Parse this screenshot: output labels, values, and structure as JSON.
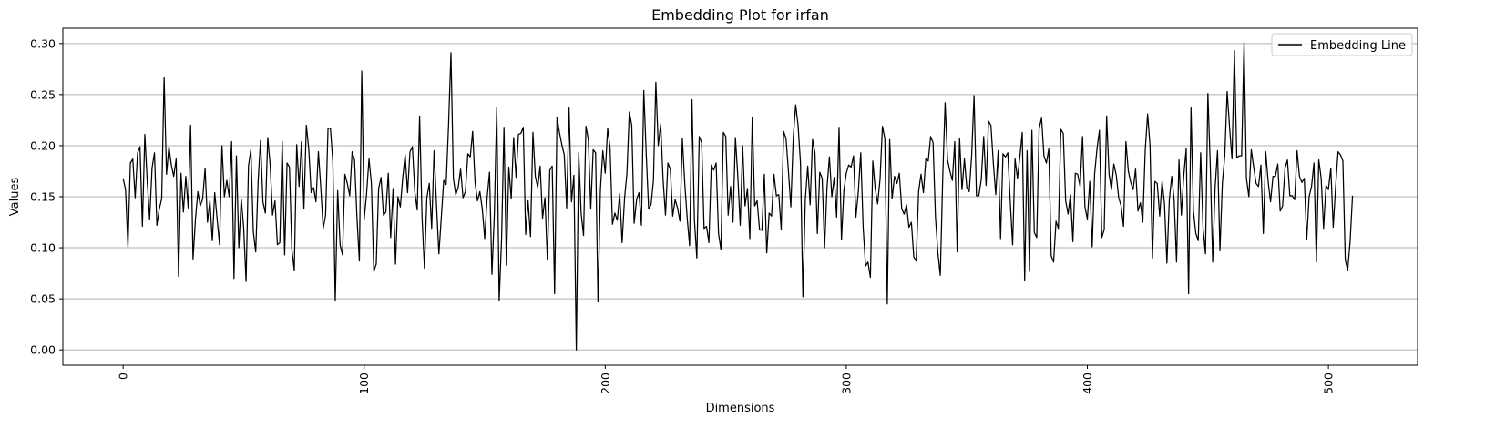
{
  "chart_data": {
    "type": "line",
    "title": "Embedding Plot for irfan",
    "xlabel": "Dimensions",
    "ylabel": "Values",
    "xlim": [
      -25,
      537
    ],
    "ylim": [
      -0.015,
      0.315
    ],
    "x_ticks": [
      0,
      100,
      200,
      300,
      400,
      500
    ],
    "x_tick_labels": [
      "0",
      "100",
      "200",
      "300",
      "400",
      "500"
    ],
    "y_ticks": [
      0.0,
      0.05,
      0.1,
      0.15,
      0.2,
      0.25,
      0.3
    ],
    "y_tick_labels": [
      "0.00",
      "0.05",
      "0.10",
      "0.15",
      "0.20",
      "0.25",
      "0.30"
    ],
    "grid": "horizontal",
    "legend_position": "top-right",
    "line_color": "#000000",
    "series": [
      {
        "name": "Embedding Line",
        "x_start": 0,
        "x_step": 1,
        "values": [
          0.168,
          0.157,
          0.101,
          0.183,
          0.187,
          0.149,
          0.193,
          0.199,
          0.121,
          0.211,
          0.165,
          0.128,
          0.178,
          0.193,
          0.122,
          0.138,
          0.148,
          0.267,
          0.172,
          0.199,
          0.181,
          0.17,
          0.187,
          0.072,
          0.173,
          0.135,
          0.17,
          0.139,
          0.22,
          0.089,
          0.128,
          0.155,
          0.141,
          0.148,
          0.178,
          0.125,
          0.146,
          0.107,
          0.154,
          0.128,
          0.103,
          0.2,
          0.15,
          0.166,
          0.15,
          0.204,
          0.07,
          0.19,
          0.1,
          0.148,
          0.12,
          0.067,
          0.18,
          0.196,
          0.116,
          0.096,
          0.165,
          0.205,
          0.145,
          0.134,
          0.208,
          0.181,
          0.132,
          0.146,
          0.103,
          0.105,
          0.204,
          0.093,
          0.183,
          0.179,
          0.098,
          0.078,
          0.201,
          0.16,
          0.204,
          0.138,
          0.22,
          0.197,
          0.154,
          0.159,
          0.145,
          0.194,
          0.159,
          0.119,
          0.132,
          0.217,
          0.217,
          0.184,
          0.048,
          0.156,
          0.103,
          0.093,
          0.172,
          0.163,
          0.151,
          0.194,
          0.186,
          0.13,
          0.087,
          0.273,
          0.128,
          0.153,
          0.187,
          0.163,
          0.077,
          0.084,
          0.158,
          0.169,
          0.132,
          0.135,
          0.173,
          0.11,
          0.158,
          0.084,
          0.15,
          0.14,
          0.169,
          0.191,
          0.154,
          0.194,
          0.199,
          0.155,
          0.137,
          0.229,
          0.13,
          0.08,
          0.149,
          0.163,
          0.119,
          0.195,
          0.142,
          0.094,
          0.13,
          0.166,
          0.162,
          0.22,
          0.291,
          0.168,
          0.152,
          0.159,
          0.177,
          0.149,
          0.155,
          0.192,
          0.189,
          0.214,
          0.164,
          0.146,
          0.155,
          0.138,
          0.109,
          0.149,
          0.174,
          0.074,
          0.133,
          0.237,
          0.048,
          0.109,
          0.218,
          0.083,
          0.179,
          0.148,
          0.208,
          0.169,
          0.211,
          0.212,
          0.218,
          0.113,
          0.146,
          0.111,
          0.213,
          0.17,
          0.159,
          0.18,
          0.129,
          0.149,
          0.088,
          0.176,
          0.18,
          0.055,
          0.228,
          0.213,
          0.201,
          0.191,
          0.139,
          0.237,
          0.145,
          0.171,
          0.0,
          0.193,
          0.134,
          0.112,
          0.219,
          0.206,
          0.138,
          0.196,
          0.193,
          0.047,
          0.157,
          0.195,
          0.173,
          0.217,
          0.198,
          0.123,
          0.134,
          0.127,
          0.153,
          0.105,
          0.148,
          0.173,
          0.233,
          0.22,
          0.124,
          0.147,
          0.154,
          0.122,
          0.254,
          0.192,
          0.138,
          0.142,
          0.166,
          0.262,
          0.2,
          0.221,
          0.167,
          0.132,
          0.183,
          0.177,
          0.131,
          0.147,
          0.139,
          0.126,
          0.207,
          0.163,
          0.129,
          0.102,
          0.245,
          0.127,
          0.09,
          0.209,
          0.203,
          0.119,
          0.121,
          0.105,
          0.181,
          0.176,
          0.183,
          0.114,
          0.098,
          0.213,
          0.209,
          0.132,
          0.16,
          0.125,
          0.208,
          0.17,
          0.122,
          0.2,
          0.141,
          0.158,
          0.109,
          0.228,
          0.141,
          0.146,
          0.118,
          0.117,
          0.172,
          0.095,
          0.134,
          0.131,
          0.172,
          0.151,
          0.152,
          0.118,
          0.214,
          0.207,
          0.175,
          0.14,
          0.208,
          0.24,
          0.22,
          0.183,
          0.052,
          0.147,
          0.18,
          0.142,
          0.206,
          0.193,
          0.114,
          0.174,
          0.168,
          0.1,
          0.159,
          0.189,
          0.15,
          0.169,
          0.13,
          0.218,
          0.108,
          0.156,
          0.173,
          0.181,
          0.179,
          0.19,
          0.13,
          0.155,
          0.193,
          0.12,
          0.082,
          0.086,
          0.071,
          0.185,
          0.158,
          0.143,
          0.167,
          0.219,
          0.207,
          0.045,
          0.206,
          0.148,
          0.17,
          0.163,
          0.173,
          0.138,
          0.133,
          0.142,
          0.12,
          0.125,
          0.091,
          0.087,
          0.155,
          0.172,
          0.154,
          0.187,
          0.185,
          0.209,
          0.203,
          0.13,
          0.095,
          0.073,
          0.168,
          0.242,
          0.186,
          0.175,
          0.166,
          0.204,
          0.096,
          0.207,
          0.157,
          0.187,
          0.159,
          0.155,
          0.19,
          0.249,
          0.151,
          0.151,
          0.167,
          0.209,
          0.161,
          0.224,
          0.22,
          0.183,
          0.152,
          0.195,
          0.109,
          0.192,
          0.189,
          0.193,
          0.146,
          0.103,
          0.187,
          0.168,
          0.189,
          0.213,
          0.068,
          0.195,
          0.077,
          0.215,
          0.115,
          0.11,
          0.217,
          0.227,
          0.19,
          0.183,
          0.197,
          0.092,
          0.086,
          0.126,
          0.119,
          0.216,
          0.212,
          0.146,
          0.133,
          0.152,
          0.106,
          0.173,
          0.172,
          0.16,
          0.209,
          0.14,
          0.128,
          0.165,
          0.101,
          0.172,
          0.197,
          0.215,
          0.11,
          0.118,
          0.229,
          0.172,
          0.157,
          0.182,
          0.171,
          0.149,
          0.141,
          0.121,
          0.204,
          0.175,
          0.164,
          0.157,
          0.177,
          0.136,
          0.144,
          0.125,
          0.195,
          0.231,
          0.2,
          0.09,
          0.165,
          0.163,
          0.131,
          0.165,
          0.143,
          0.085,
          0.147,
          0.17,
          0.147,
          0.086,
          0.186,
          0.132,
          0.171,
          0.197,
          0.055,
          0.237,
          0.136,
          0.114,
          0.107,
          0.193,
          0.119,
          0.094,
          0.251,
          0.18,
          0.086,
          0.159,
          0.195,
          0.097,
          0.163,
          0.19,
          0.253,
          0.218,
          0.187,
          0.293,
          0.188,
          0.19,
          0.19,
          0.301,
          0.168,
          0.15,
          0.196,
          0.179,
          0.163,
          0.16,
          0.181,
          0.114,
          0.194,
          0.165,
          0.145,
          0.17,
          0.17,
          0.182,
          0.136,
          0.141,
          0.178,
          0.186,
          0.151,
          0.151,
          0.147,
          0.195,
          0.17,
          0.164,
          0.168,
          0.108,
          0.15,
          0.16,
          0.183,
          0.086,
          0.186,
          0.168,
          0.119,
          0.161,
          0.157,
          0.178,
          0.12,
          0.16,
          0.194,
          0.191,
          0.185,
          0.088,
          0.078,
          0.106,
          0.151
        ]
      }
    ]
  }
}
